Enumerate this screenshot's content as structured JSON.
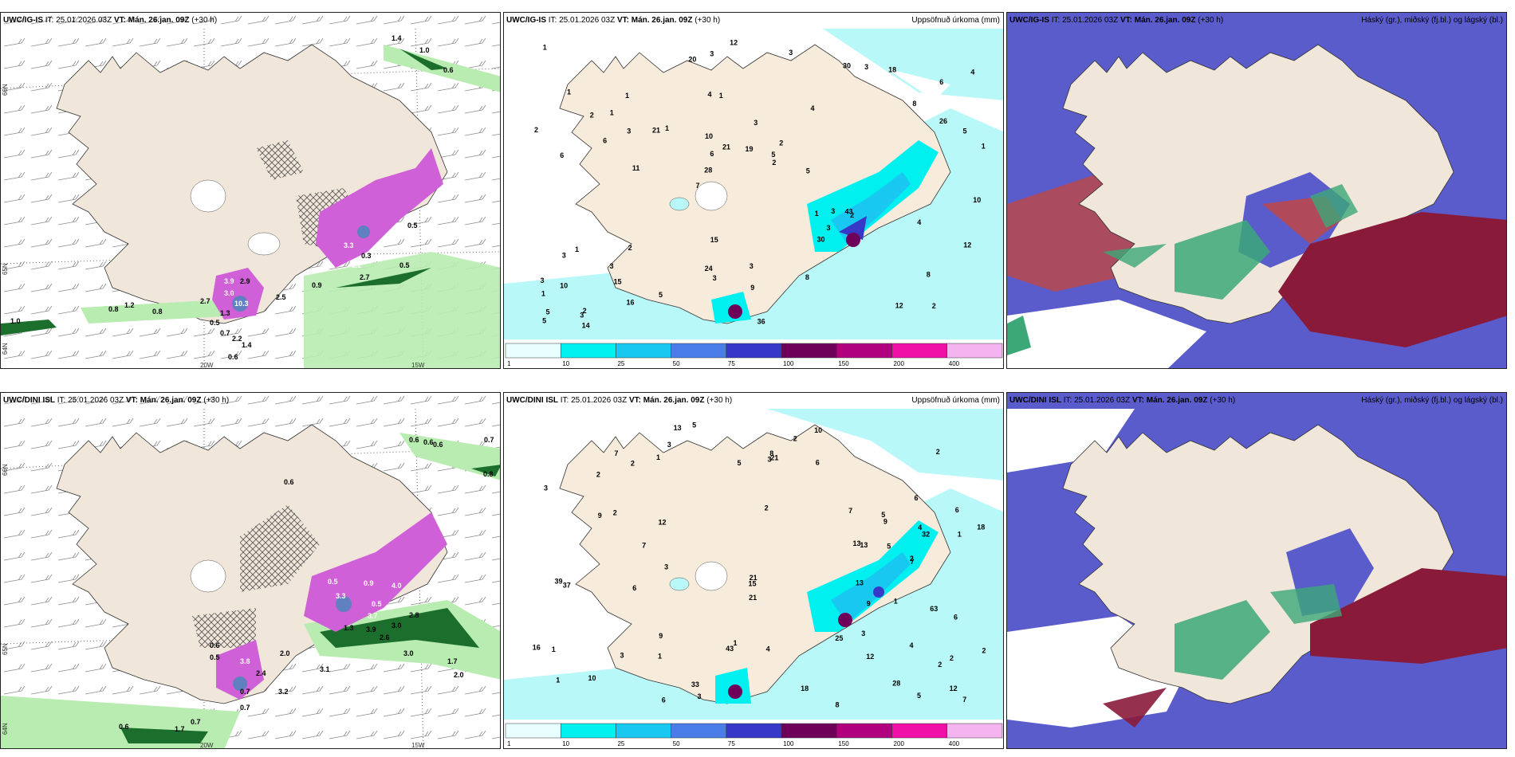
{
  "rows": [
    {
      "model": "UWC/IG-IS",
      "wind": {
        "value_labels": [
          "1.4",
          "1.0",
          "0.6",
          "0.5",
          "3.3",
          "1.2",
          "0.3",
          "0.5",
          "2.7",
          "0.9",
          "3.9",
          "3.0",
          "2.9",
          "10.3",
          "1.3",
          "0.5",
          "0.7",
          "2.2",
          "1.4",
          "0.6",
          "0.8",
          "1.2",
          "0.8",
          "1.0",
          "2.7",
          "2.5"
        ],
        "coords": [
          "66N",
          "65N",
          "64N",
          "20W",
          "15W"
        ]
      },
      "precip": {
        "numbers": [
          "2",
          "6",
          "6",
          "7",
          "4",
          "2",
          "4",
          "3",
          "1",
          "1",
          "1",
          "15",
          "1",
          "2",
          "2",
          "1",
          "3",
          "1",
          "1",
          "26",
          "28",
          "24",
          "6",
          "1",
          "30",
          "2",
          "12",
          "8",
          "43",
          "36",
          "21",
          "6",
          "30",
          "16",
          "5",
          "5",
          "5",
          "3",
          "2",
          "3",
          "8",
          "4",
          "3",
          "8",
          "3",
          "14",
          "5",
          "3",
          "18",
          "12",
          "11",
          "2",
          "1",
          "3",
          "3",
          "3",
          "20",
          "21",
          "12",
          "15",
          "5",
          "3",
          "3",
          "3",
          "1",
          "2",
          "10",
          "10",
          "9",
          "19",
          "10",
          "5",
          "4"
        ]
      }
    },
    {
      "model": "UWC/DINI ISL",
      "wind": {
        "value_labels": [
          "0.6",
          "0.6",
          "0.6",
          "0.7",
          "0.8",
          "0.6",
          "0.5",
          "0.9",
          "4.0",
          "3.3",
          "0.5",
          "3.7",
          "1.3",
          "3.9",
          "2.6",
          "3.0",
          "2.8",
          "2.0",
          "3.8",
          "2.4",
          "0.7",
          "3.2",
          "0.6",
          "1.7",
          "0.7",
          "3.1",
          "0.6",
          "3.0",
          "1.7",
          "2.0",
          "0.5",
          "0.7"
        ],
        "coords": [
          "66N",
          "65N",
          "64N",
          "20W",
          "15W"
        ]
      },
      "precip": {
        "numbers": [
          "4",
          "6",
          "2",
          "2",
          "1",
          "3",
          "4",
          "1",
          "2",
          "2",
          "1",
          "3",
          "2",
          "3",
          "1",
          "2",
          "2",
          "1",
          "1",
          "32",
          "39",
          "37",
          "18",
          "13",
          "33",
          "43",
          "2",
          "6",
          "7",
          "2",
          "6",
          "12",
          "6",
          "15",
          "63",
          "28",
          "13",
          "5",
          "5",
          "3",
          "1",
          "5",
          "3",
          "7",
          "6",
          "9",
          "10",
          "10",
          "12",
          "9",
          "3",
          "21",
          "21",
          "18",
          "25",
          "13",
          "13",
          "7",
          "8",
          "8",
          "5",
          "3",
          "7",
          "4",
          "2",
          "12",
          "16",
          "21",
          "5",
          "9",
          "6",
          "7",
          "9"
        ]
      }
    }
  ],
  "header": {
    "it": "IT: 25.01.2026 03Z",
    "vt": "VT: Mán. 26.jan. 09Z",
    "lead": "(+30 h)"
  },
  "precip_title": "Uppsöfnuð úrkoma (mm)",
  "cloud_title": "Háský (gr.), miðský (fj.bl.) og lágský (bl.)",
  "colorbar": {
    "ticks": [
      "1",
      "10",
      "25",
      "50",
      "75",
      "100",
      "150",
      "200",
      "400"
    ],
    "colors": [
      "#e9ffff",
      "#00f0f0",
      "#18c8f0",
      "#4a7de8",
      "#3838c8",
      "#6e005a",
      "#b00080",
      "#f010a8",
      "#f4b4f0"
    ]
  }
}
